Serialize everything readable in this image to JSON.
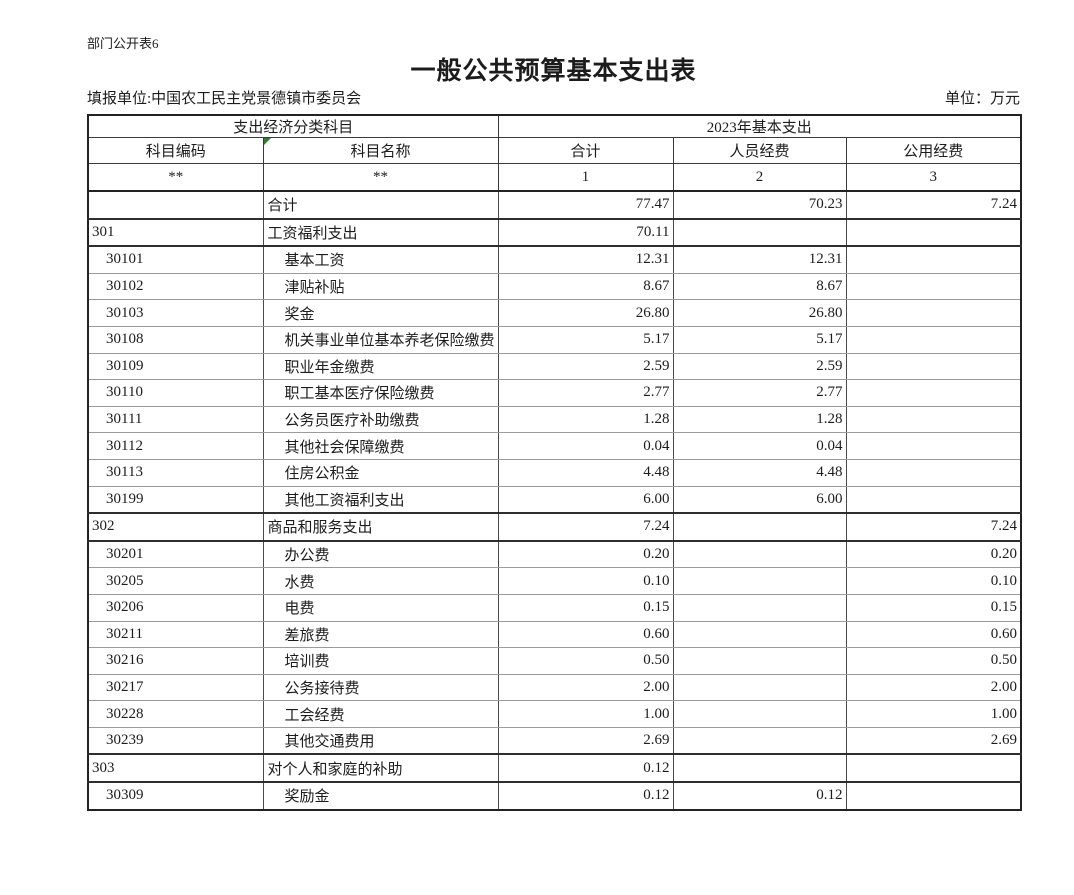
{
  "page": {
    "doc_label": "部门公开表6",
    "title": "一般公共预算基本支出表",
    "filing_unit": "填报单位:中国农工民主党景德镇市委员会",
    "unit_note": "单位：万元"
  },
  "colors": {
    "border_dark": "#222222",
    "border_light": "#9b9b9b",
    "corner_flag_green": "#2e7d32"
  },
  "table": {
    "header": {
      "group_left": "支出经济分类科目",
      "group_right": "2023年基本支出",
      "columns": [
        "科目编码",
        "科目名称",
        "合计",
        "人员经费",
        "公用经费"
      ],
      "index_row": [
        "**",
        "**",
        "1",
        "2",
        "3"
      ]
    },
    "rows": [
      {
        "code": "",
        "name": "合计",
        "total": "77.47",
        "personnel": "70.23",
        "public": "7.24",
        "level": 0
      },
      {
        "code": "301",
        "name": "工资福利支出",
        "total": "70.11",
        "personnel": "",
        "public": "",
        "level": 0
      },
      {
        "code": "30101",
        "name": "基本工资",
        "total": "12.31",
        "personnel": "12.31",
        "public": "",
        "level": 1
      },
      {
        "code": "30102",
        "name": "津贴补贴",
        "total": "8.67",
        "personnel": "8.67",
        "public": "",
        "level": 1
      },
      {
        "code": "30103",
        "name": "奖金",
        "total": "26.80",
        "personnel": "26.80",
        "public": "",
        "level": 1
      },
      {
        "code": "30108",
        "name": "机关事业单位基本养老保险缴费",
        "total": "5.17",
        "personnel": "5.17",
        "public": "",
        "level": 1
      },
      {
        "code": "30109",
        "name": "职业年金缴费",
        "total": "2.59",
        "personnel": "2.59",
        "public": "",
        "level": 1
      },
      {
        "code": "30110",
        "name": "职工基本医疗保险缴费",
        "total": "2.77",
        "personnel": "2.77",
        "public": "",
        "level": 1
      },
      {
        "code": "30111",
        "name": "公务员医疗补助缴费",
        "total": "1.28",
        "personnel": "1.28",
        "public": "",
        "level": 1
      },
      {
        "code": "30112",
        "name": "其他社会保障缴费",
        "total": "0.04",
        "personnel": "0.04",
        "public": "",
        "level": 1
      },
      {
        "code": "30113",
        "name": "住房公积金",
        "total": "4.48",
        "personnel": "4.48",
        "public": "",
        "level": 1
      },
      {
        "code": "30199",
        "name": "其他工资福利支出",
        "total": "6.00",
        "personnel": "6.00",
        "public": "",
        "level": 1
      },
      {
        "code": "302",
        "name": "商品和服务支出",
        "total": "7.24",
        "personnel": "",
        "public": "7.24",
        "level": 0
      },
      {
        "code": "30201",
        "name": "办公费",
        "total": "0.20",
        "personnel": "",
        "public": "0.20",
        "level": 1
      },
      {
        "code": "30205",
        "name": "水费",
        "total": "0.10",
        "personnel": "",
        "public": "0.10",
        "level": 1
      },
      {
        "code": "30206",
        "name": "电费",
        "total": "0.15",
        "personnel": "",
        "public": "0.15",
        "level": 1
      },
      {
        "code": "30211",
        "name": "差旅费",
        "total": "0.60",
        "personnel": "",
        "public": "0.60",
        "level": 1
      },
      {
        "code": "30216",
        "name": "培训费",
        "total": "0.50",
        "personnel": "",
        "public": "0.50",
        "level": 1
      },
      {
        "code": "30217",
        "name": "公务接待费",
        "total": "2.00",
        "personnel": "",
        "public": "2.00",
        "level": 1
      },
      {
        "code": "30228",
        "name": "工会经费",
        "total": "1.00",
        "personnel": "",
        "public": "1.00",
        "level": 1
      },
      {
        "code": "30239",
        "name": "其他交通费用",
        "total": "2.69",
        "personnel": "",
        "public": "2.69",
        "level": 1
      },
      {
        "code": "303",
        "name": "对个人和家庭的补助",
        "total": "0.12",
        "personnel": "",
        "public": "",
        "level": 0
      },
      {
        "code": "30309",
        "name": "奖励金",
        "total": "0.12",
        "personnel": "0.12",
        "public": "",
        "level": 1
      }
    ]
  }
}
